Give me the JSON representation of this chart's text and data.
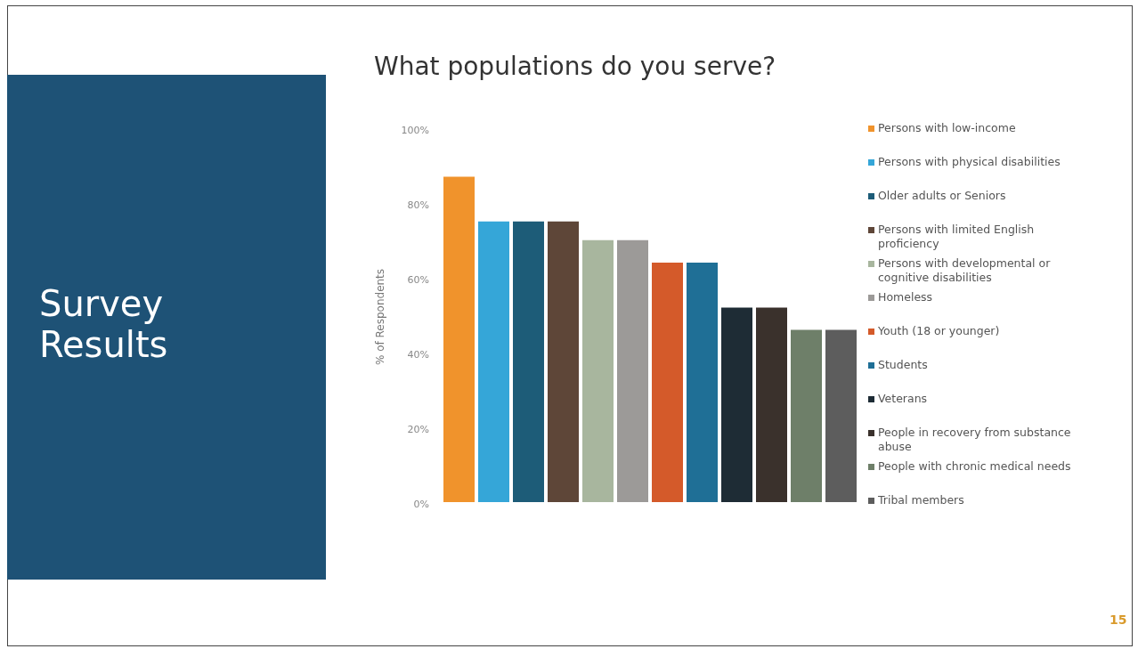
{
  "chart_data": {
    "type": "bar",
    "title": "What populations do you serve?",
    "ylabel": "% of Respondents",
    "annotations": [
      "Survey Results",
      "15"
    ],
    "categories": [
      null
    ],
    "series": [
      {
        "name": "Persons with low-income",
        "color": "#f0932c",
        "values": [
          88
        ]
      },
      {
        "name": "Persons with physical disabilities",
        "color": "#35a6d8",
        "values": [
          76
        ]
      },
      {
        "name": "Older adults or Seniors",
        "color": "#1d5c78",
        "values": [
          76
        ]
      },
      {
        "name": "Persons with limited English proficiency",
        "color": "#5e4638",
        "values": [
          76
        ]
      },
      {
        "name": "Persons with developmental or cognitive disabilities",
        "color": "#a8b69e",
        "values": [
          71
        ]
      },
      {
        "name": "Homeless",
        "color": "#9c9a98",
        "values": [
          71
        ]
      },
      {
        "name": "Youth (18 or younger)",
        "color": "#d45a2a",
        "values": [
          65
        ]
      },
      {
        "name": "Students",
        "color": "#1f6f96",
        "values": [
          65
        ]
      },
      {
        "name": "Veterans",
        "color": "#1e2c35",
        "values": [
          53
        ]
      },
      {
        "name": "People in recovery from substance abuse",
        "color": "#3a312c",
        "values": [
          53
        ]
      },
      {
        "name": "People with chronic medical needs",
        "color": "#6e7f69",
        "values": [
          47
        ]
      },
      {
        "name": "Tribal members",
        "color": "#5d5d5d",
        "values": [
          47
        ]
      }
    ],
    "ylim": [
      0,
      100
    ],
    "yticks": [
      {
        "value": 0,
        "label": "0%"
      },
      {
        "value": 20,
        "label": "20%"
      },
      {
        "value": 40,
        "label": "40%"
      },
      {
        "value": 60,
        "label": "60%"
      },
      {
        "value": 80,
        "label": "80%"
      },
      {
        "value": 100,
        "label": "100%"
      }
    ],
    "legend": "right"
  }
}
